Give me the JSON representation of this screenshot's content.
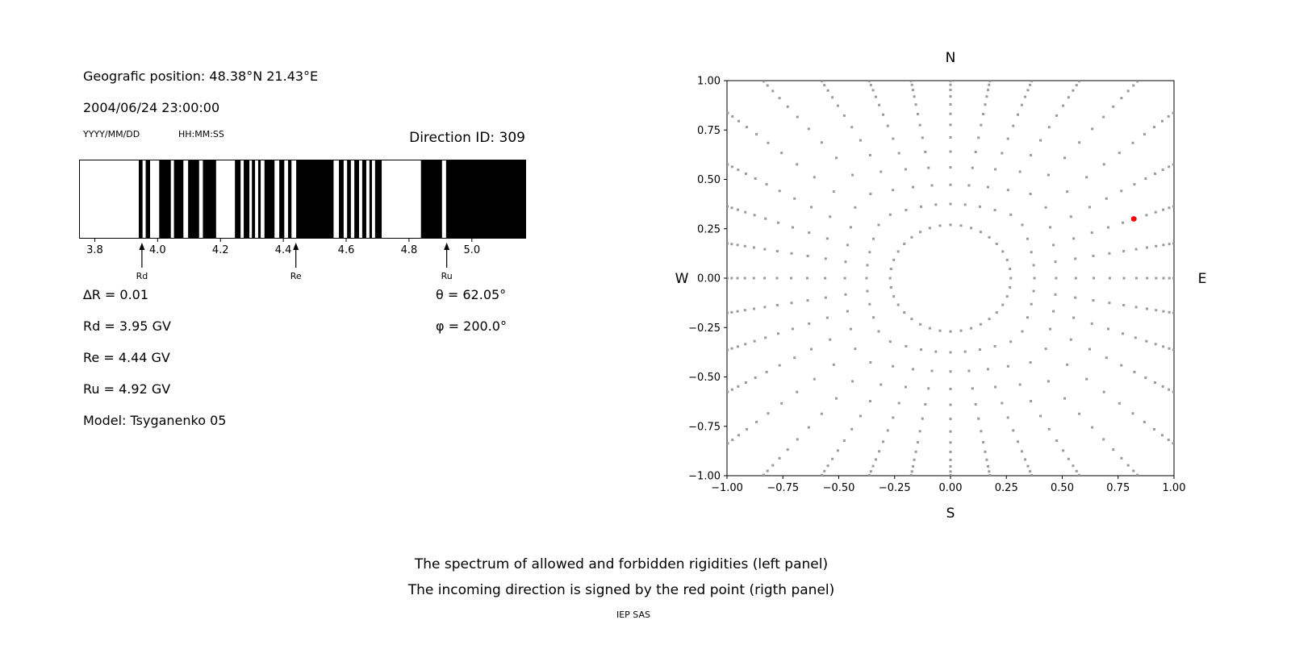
{
  "header": {
    "position": "Geografic position: 48.38°N 21.43°E",
    "datetime": "2004/06/24 23:00:00",
    "date_format_label": "YYYY/MM/DD",
    "time_format_label": "HH:MM:SS",
    "direction_id": "Direction ID: 309"
  },
  "parameters": {
    "delta_r": "∆R = 0.01",
    "rd": "Rd = 3.95 GV",
    "re": "Re = 4.44 GV",
    "ru": "Ru = 4.92 GV",
    "model": "Model: Tsyganenko 05",
    "theta": "θ = 62.05°",
    "phi": "φ = 200.0°"
  },
  "captions": {
    "line1": "The spectrum of allowed and forbidden rigidities (left panel)",
    "line2": "The incoming direction is signed by the red point (rigth panel)",
    "credit": "IEP SAS"
  },
  "chart_data": [
    {
      "name": "rigidity_spectrum",
      "type": "bar",
      "description": "Barcode-style cutoff rigidity spectrum; black bands = allowed rigidities, white = forbidden",
      "x_range": [
        3.75,
        5.17
      ],
      "x_unit": "GV",
      "x_tick_values": [
        3.8,
        4.0,
        4.2,
        4.4,
        4.6,
        4.8,
        5.0
      ],
      "x_tick_labels": [
        "3.8",
        "4.0",
        "4.2",
        "4.4",
        "4.6",
        "4.8",
        "5.0"
      ],
      "bar_color": "#000000",
      "background_color": "#ffffff",
      "delta_r_gv": 0.01,
      "allowed_intervals_gv": [
        [
          3.94,
          3.952
        ],
        [
          3.962,
          3.976
        ],
        [
          4.005,
          4.042
        ],
        [
          4.052,
          4.082
        ],
        [
          4.097,
          4.132
        ],
        [
          4.144,
          4.186
        ],
        [
          4.246,
          4.264
        ],
        [
          4.274,
          4.292
        ],
        [
          4.3,
          4.31
        ],
        [
          4.32,
          4.328
        ],
        [
          4.34,
          4.372
        ],
        [
          4.387,
          4.403
        ],
        [
          4.415,
          4.426
        ],
        [
          4.441,
          4.56
        ],
        [
          4.577,
          4.592
        ],
        [
          4.603,
          4.615
        ],
        [
          4.626,
          4.641
        ],
        [
          4.651,
          4.664
        ],
        [
          4.674,
          4.682
        ],
        [
          4.692,
          4.713
        ],
        [
          4.838,
          4.905
        ],
        [
          4.918,
          5.17
        ]
      ],
      "markers": [
        {
          "label": "Rd",
          "value_gv": 3.95
        },
        {
          "label": "Re",
          "value_gv": 4.44
        },
        {
          "label": "Ru",
          "value_gv": 4.92
        }
      ]
    },
    {
      "name": "incoming_direction_map",
      "type": "scatter",
      "description": "Sky map of asymptotic directions; red point marks the incoming direction",
      "xlim": [
        -1,
        1
      ],
      "ylim": [
        -1,
        1
      ],
      "tick_values": [
        -1,
        -0.75,
        -0.5,
        -0.25,
        0,
        0.25,
        0.5,
        0.75,
        1
      ],
      "tick_labels": [
        "−1.00",
        "−0.75",
        "−0.50",
        "−0.25",
        "0.00",
        "0.25",
        "0.50",
        "0.75",
        "1.00"
      ],
      "compass": {
        "north": "N",
        "south": "S",
        "west": "W",
        "east": "E"
      },
      "red_point": {
        "x": 0.82,
        "y": 0.3,
        "color": "#ff0000"
      },
      "gray_dots": {
        "color": "#9a9a9a",
        "spoke_count": 36,
        "spoke_step_deg": 10,
        "dots_per_spoke": 16,
        "inner_radius": 0.27,
        "edge_overshoot": 1.02,
        "edge_clustering_exponent": 2.2
      }
    }
  ]
}
